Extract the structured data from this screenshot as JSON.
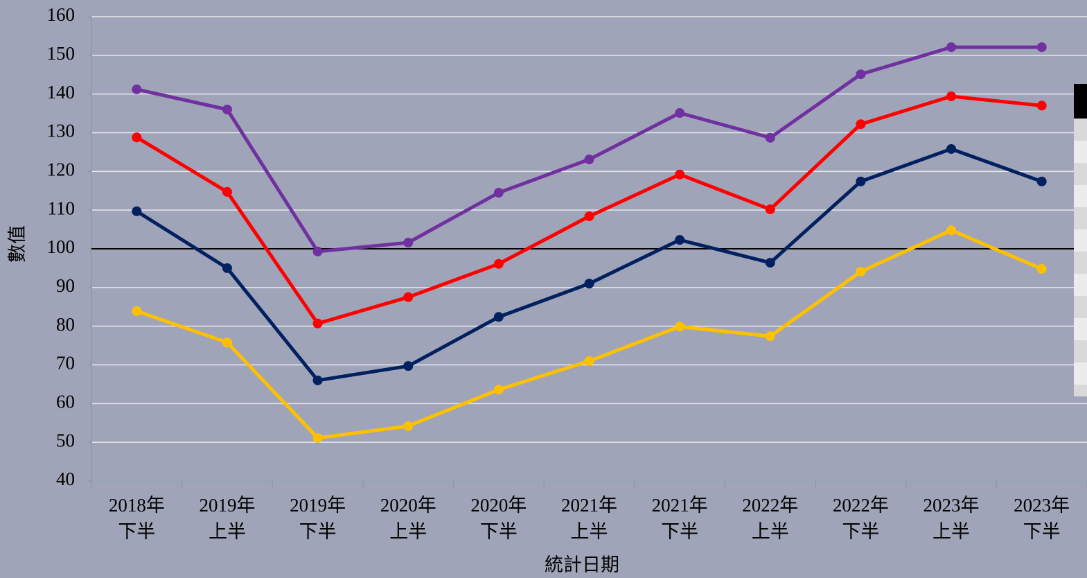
{
  "chart_data": {
    "type": "line",
    "x_label": "統計日期",
    "y_label": "數值",
    "categories": [
      "2018年\n下半",
      "2019年\n上半",
      "2019年\n下半",
      "2020年\n上半",
      "2020年\n下半",
      "2021年\n上半",
      "2021年\n下半",
      "2022年\n上半",
      "2022年\n下半",
      "2023年\n上半",
      "2023年\n下半"
    ],
    "series": [
      {
        "color": "#7030a0",
        "values": [
          141.2,
          136.0,
          99.3,
          101.6,
          114.5,
          123.1,
          135.1,
          128.7,
          145.1,
          152.1,
          152.1
        ]
      },
      {
        "color": "#ff0000",
        "values": [
          128.8,
          114.7,
          80.7,
          87.5,
          96.1,
          108.4,
          119.2,
          110.2,
          132.2,
          139.4,
          137.0
        ]
      },
      {
        "color": "#002060",
        "values": [
          109.7,
          95.0,
          66.0,
          69.7,
          82.4,
          91.0,
          102.3,
          96.4,
          117.4,
          125.8,
          117.4
        ]
      },
      {
        "color": "#ffc000",
        "values": [
          83.9,
          75.8,
          51.1,
          54.2,
          63.6,
          71.0,
          79.9,
          77.4,
          94.1,
          104.8,
          94.8
        ]
      }
    ],
    "reference_line": 100,
    "ylim": [
      40,
      160
    ],
    "yticks": [
      40,
      50,
      60,
      70,
      80,
      90,
      100,
      110,
      120,
      130,
      140,
      150,
      160
    ],
    "grid": true
  }
}
